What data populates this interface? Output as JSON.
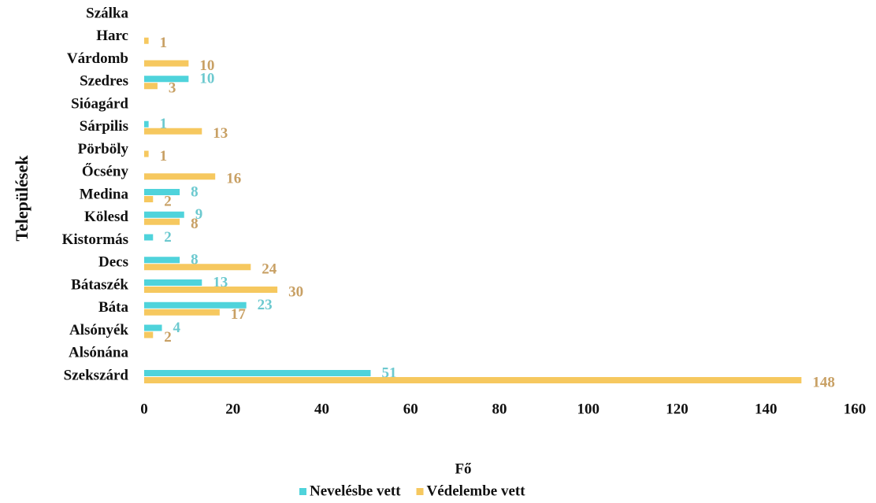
{
  "chart_data": {
    "type": "hbar",
    "xlabel": "Fő",
    "ylabel": "Települések",
    "categories": [
      "Szálka",
      "Harc",
      "Várdomb",
      "Szedres",
      "Sióagárd",
      "Sárpilis",
      "Pörböly",
      "Őcsény",
      "Medina",
      "Kölesd",
      "Kistormás",
      "Decs",
      "Bátaszék",
      "Báta",
      "Alsónyék",
      "Alsónána",
      "Szekszárd"
    ],
    "series": [
      {
        "name": "Nevelésbe vett",
        "color": "#4fd3db",
        "label_color": "#6cc9cf",
        "values": [
          null,
          null,
          null,
          10,
          null,
          1,
          null,
          null,
          8,
          9,
          2,
          8,
          13,
          23,
          4,
          null,
          51
        ]
      },
      {
        "name": "Védelembe vett",
        "color": "#f6c85f",
        "label_color": "#c8a064",
        "values": [
          null,
          1,
          10,
          3,
          null,
          13,
          1,
          16,
          2,
          8,
          null,
          24,
          30,
          17,
          2,
          null,
          148
        ]
      }
    ],
    "xlim": [
      0,
      160
    ],
    "xticks": [
      0,
      20,
      40,
      60,
      80,
      100,
      120,
      140,
      160
    ],
    "grid": false
  }
}
